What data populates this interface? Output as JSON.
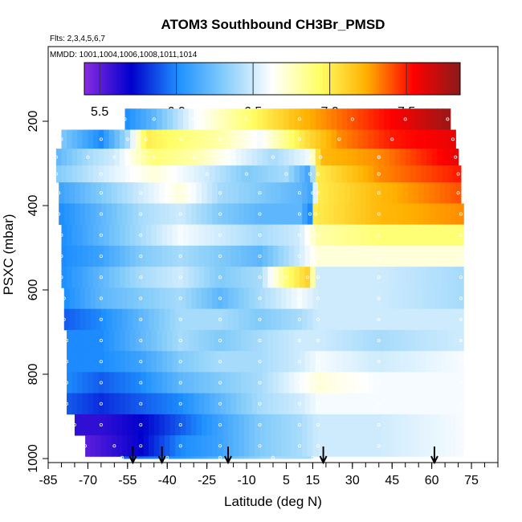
{
  "chart_data": {
    "type": "heatmap",
    "title": "ATOM3 Southbound CH3Br_PMSD",
    "note_flights": "Flts: 2,3,4,5,6,7",
    "note_dates": "MMDD: 1001,1004,1006,1008,1011,1014",
    "xlabel": "Latitude (deg N)",
    "ylabel": "PSXC (mbar)",
    "xlim": [
      -85,
      85
    ],
    "ylim": [
      1000,
      100
    ],
    "x_ticks": [
      "-85",
      "-70",
      "-55",
      "-40",
      "-25",
      "-10",
      "5",
      "15",
      "30",
      "45",
      "60",
      "75"
    ],
    "y_ticks": [
      "200",
      "400",
      "600",
      "800",
      "1000"
    ],
    "colorbar": {
      "min": 5.4,
      "max": 7.85,
      "ticks": [
        "5.5",
        "6.0",
        "6.5",
        "7.0",
        "7.5"
      ],
      "colors": [
        "#8a2be2",
        "#0000cd",
        "#1e90ff",
        "#87cefa",
        "#ffffff",
        "#ffff66",
        "#ffb000",
        "#ff0000",
        "#8b1a1a"
      ]
    },
    "layers": [
      {
        "p_top": 170,
        "p_bot": 220,
        "lat_min": -56,
        "lat_max": 67,
        "points": [
          [
            -56,
            6.0
          ],
          [
            -45,
            6.2
          ],
          [
            -30,
            6.6
          ],
          [
            -10,
            6.9
          ],
          [
            10,
            7.2
          ],
          [
            30,
            7.4
          ],
          [
            50,
            7.6
          ],
          [
            66,
            7.8
          ]
        ]
      },
      {
        "p_top": 220,
        "p_bot": 265,
        "lat_min": -80,
        "lat_max": 69,
        "points": [
          [
            -80,
            6.3
          ],
          [
            -65,
            6.0
          ],
          [
            -55,
            6.4
          ],
          [
            -48,
            7.0
          ],
          [
            -35,
            6.9
          ],
          [
            -20,
            6.8
          ],
          [
            -5,
            6.6
          ],
          [
            10,
            7.0
          ],
          [
            25,
            7.3
          ],
          [
            45,
            7.5
          ],
          [
            68,
            7.6
          ]
        ]
      },
      {
        "p_top": 265,
        "p_bot": 305,
        "lat_min": -82,
        "lat_max": 70,
        "points": [
          [
            -82,
            6.2
          ],
          [
            -70,
            6.4
          ],
          [
            -60,
            6.5
          ],
          [
            -45,
            6.9
          ],
          [
            -30,
            6.8
          ],
          [
            -15,
            6.6
          ],
          [
            0,
            6.4
          ],
          [
            14,
            6.6
          ],
          [
            18,
            7.2
          ],
          [
            40,
            7.3
          ],
          [
            69,
            7.6
          ]
        ]
      },
      {
        "p_top": 305,
        "p_bot": 345,
        "lat_min": -82,
        "lat_max": 71,
        "points": [
          [
            -82,
            6.3
          ],
          [
            -65,
            6.5
          ],
          [
            -45,
            6.7
          ],
          [
            -25,
            6.5
          ],
          [
            -10,
            6.3
          ],
          [
            5,
            6.4
          ],
          [
            14,
            6.1
          ],
          [
            17,
            7.0
          ],
          [
            40,
            7.3
          ],
          [
            70,
            7.5
          ]
        ]
      },
      {
        "p_top": 345,
        "p_bot": 395,
        "lat_min": -81,
        "lat_max": 71,
        "points": [
          [
            -81,
            6.1
          ],
          [
            -65,
            6.3
          ],
          [
            -50,
            6.5
          ],
          [
            -35,
            6.7
          ],
          [
            -20,
            6.4
          ],
          [
            -5,
            6.3
          ],
          [
            10,
            6.2
          ],
          [
            15,
            6.1
          ],
          [
            17,
            7.0
          ],
          [
            40,
            7.2
          ],
          [
            70,
            7.4
          ]
        ]
      },
      {
        "p_top": 395,
        "p_bot": 445,
        "lat_min": -81,
        "lat_max": 72,
        "points": [
          [
            -81,
            6.0
          ],
          [
            -65,
            6.2
          ],
          [
            -50,
            6.4
          ],
          [
            -35,
            6.5
          ],
          [
            -20,
            6.3
          ],
          [
            -5,
            6.2
          ],
          [
            10,
            6.2
          ],
          [
            14,
            6.0
          ],
          [
            16,
            7.0
          ],
          [
            40,
            7.2
          ],
          [
            71,
            7.3
          ]
        ]
      },
      {
        "p_top": 445,
        "p_bot": 495,
        "lat_min": -80,
        "lat_max": 72,
        "points": [
          [
            -80,
            6.0
          ],
          [
            -65,
            6.2
          ],
          [
            -50,
            6.4
          ],
          [
            -35,
            6.6
          ],
          [
            -20,
            6.5
          ],
          [
            -5,
            6.4
          ],
          [
            10,
            6.5
          ],
          [
            17,
            6.8
          ],
          [
            40,
            6.9
          ],
          [
            71,
            6.9
          ]
        ]
      },
      {
        "p_top": 495,
        "p_bot": 545,
        "lat_min": -80,
        "lat_max": 72,
        "points": [
          [
            -80,
            6.0
          ],
          [
            -65,
            6.1
          ],
          [
            -50,
            6.3
          ],
          [
            -35,
            6.4
          ],
          [
            -20,
            6.3
          ],
          [
            -5,
            6.2
          ],
          [
            10,
            6.5
          ],
          [
            17,
            6.7
          ],
          [
            40,
            6.7
          ],
          [
            71,
            6.7
          ]
        ]
      },
      {
        "p_top": 545,
        "p_bot": 595,
        "lat_min": -80,
        "lat_max": 72,
        "points": [
          [
            -80,
            6.0
          ],
          [
            -65,
            6.2
          ],
          [
            -50,
            6.4
          ],
          [
            -35,
            6.5
          ],
          [
            -20,
            6.3
          ],
          [
            -5,
            6.4
          ],
          [
            5,
            6.9
          ],
          [
            13,
            7.1
          ],
          [
            17,
            6.5
          ],
          [
            40,
            6.5
          ],
          [
            71,
            6.4
          ]
        ]
      },
      {
        "p_top": 595,
        "p_bot": 645,
        "lat_min": -79,
        "lat_max": 72,
        "points": [
          [
            -79,
            6.0
          ],
          [
            -65,
            6.2
          ],
          [
            -50,
            6.3
          ],
          [
            -35,
            6.4
          ],
          [
            -20,
            6.2
          ],
          [
            -5,
            6.4
          ],
          [
            10,
            6.6
          ],
          [
            17,
            6.5
          ],
          [
            40,
            6.5
          ],
          [
            71,
            6.4
          ]
        ]
      },
      {
        "p_top": 645,
        "p_bot": 695,
        "lat_min": -79,
        "lat_max": 72,
        "points": [
          [
            -79,
            5.9
          ],
          [
            -65,
            6.0
          ],
          [
            -50,
            6.2
          ],
          [
            -35,
            6.4
          ],
          [
            -20,
            6.4
          ],
          [
            -5,
            6.3
          ],
          [
            10,
            6.4
          ],
          [
            17,
            6.5
          ],
          [
            40,
            6.5
          ],
          [
            71,
            6.5
          ]
        ]
      },
      {
        "p_top": 695,
        "p_bot": 745,
        "lat_min": -78,
        "lat_max": 72,
        "points": [
          [
            -78,
            6.0
          ],
          [
            -65,
            6.0
          ],
          [
            -50,
            6.2
          ],
          [
            -35,
            6.4
          ],
          [
            -20,
            6.3
          ],
          [
            -5,
            6.4
          ],
          [
            10,
            6.5
          ],
          [
            17,
            6.5
          ],
          [
            40,
            6.4
          ],
          [
            71,
            6.5
          ]
        ]
      },
      {
        "p_top": 745,
        "p_bot": 795,
        "lat_min": -78,
        "lat_max": 72,
        "points": [
          [
            -78,
            6.0
          ],
          [
            -65,
            6.0
          ],
          [
            -50,
            6.1
          ],
          [
            -35,
            6.3
          ],
          [
            -20,
            6.4
          ],
          [
            -5,
            6.4
          ],
          [
            10,
            6.5
          ],
          [
            17,
            6.6
          ],
          [
            40,
            6.5
          ],
          [
            71,
            6.6
          ]
        ]
      },
      {
        "p_top": 795,
        "p_bot": 845,
        "lat_min": -78,
        "lat_max": 72,
        "points": [
          [
            -78,
            6.0
          ],
          [
            -65,
            5.9
          ],
          [
            -50,
            6.0
          ],
          [
            -35,
            6.2
          ],
          [
            -20,
            6.3
          ],
          [
            -5,
            6.4
          ],
          [
            10,
            6.6
          ],
          [
            17,
            6.7
          ],
          [
            40,
            6.6
          ],
          [
            71,
            6.6
          ]
        ]
      },
      {
        "p_top": 845,
        "p_bot": 895,
        "lat_min": -78,
        "lat_max": 72,
        "points": [
          [
            -78,
            5.9
          ],
          [
            -65,
            5.8
          ],
          [
            -50,
            5.9
          ],
          [
            -35,
            6.0
          ],
          [
            -20,
            6.2
          ],
          [
            -5,
            6.4
          ],
          [
            10,
            6.5
          ],
          [
            17,
            6.6
          ],
          [
            40,
            6.6
          ],
          [
            71,
            6.6
          ]
        ]
      },
      {
        "p_top": 895,
        "p_bot": 945,
        "lat_min": -75,
        "lat_max": 72,
        "points": [
          [
            -75,
            5.6
          ],
          [
            -65,
            5.6
          ],
          [
            -50,
            5.7
          ],
          [
            -35,
            5.9
          ],
          [
            -20,
            6.1
          ],
          [
            -5,
            6.3
          ],
          [
            10,
            6.4
          ],
          [
            17,
            6.5
          ],
          [
            40,
            6.5
          ],
          [
            71,
            6.6
          ]
        ]
      },
      {
        "p_top": 945,
        "p_bot": 995,
        "lat_min": -71,
        "lat_max": 72,
        "points": [
          [
            -71,
            5.5
          ],
          [
            -60,
            5.6
          ],
          [
            -50,
            5.7
          ],
          [
            -35,
            6.0
          ],
          [
            -20,
            6.1
          ],
          [
            -5,
            6.3
          ],
          [
            10,
            6.4
          ],
          [
            17,
            6.5
          ],
          [
            40,
            6.5
          ],
          [
            71,
            6.6
          ]
        ]
      },
      {
        "p_top": 995,
        "p_bot": 1000,
        "lat_min": -57,
        "lat_max": 15,
        "points": [
          [
            -57,
            5.9
          ],
          [
            -40,
            6.0
          ],
          [
            -20,
            6.2
          ],
          [
            0,
            6.4
          ],
          [
            15,
            6.4
          ]
        ]
      }
    ],
    "arrows_lat": [
      -53,
      -42,
      -17,
      19,
      61
    ]
  }
}
